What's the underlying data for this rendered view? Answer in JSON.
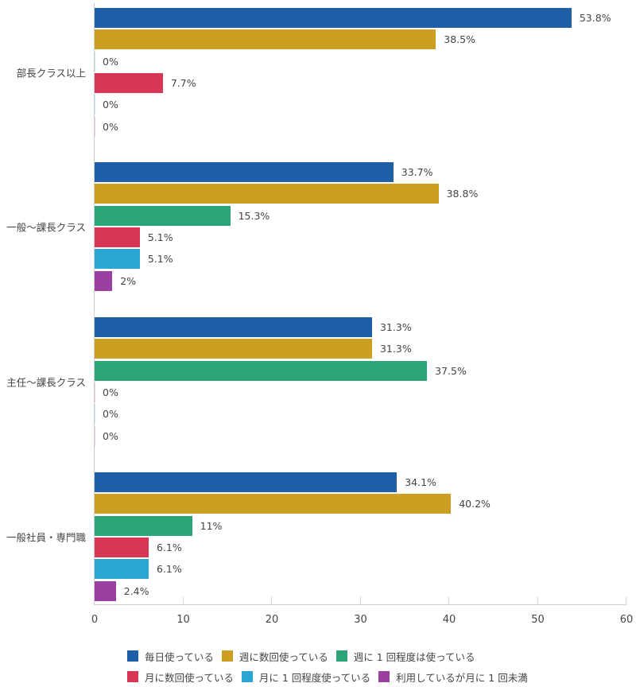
{
  "chart_data": {
    "type": "bar",
    "orientation": "horizontal",
    "title": "",
    "xlabel": "",
    "ylabel": "",
    "xlim": [
      0,
      60
    ],
    "x_ticks": [
      0,
      10,
      20,
      30,
      40,
      50,
      60
    ],
    "grid": false,
    "legend_position": "bottom",
    "value_suffix": "%",
    "categories": [
      "部長クラス以上",
      "一般～課長クラス",
      "主任～課長クラス",
      "一般社員・専門職"
    ],
    "series": [
      {
        "name": "毎日使っている",
        "color": "#1f5fa8",
        "values": [
          53.8,
          33.7,
          31.3,
          34.1
        ],
        "labels": [
          "53.8%",
          "33.7%",
          "31.3%",
          "34.1%"
        ]
      },
      {
        "name": "週に数回使っている",
        "color": "#cc9e22",
        "values": [
          38.5,
          38.8,
          31.3,
          40.2
        ],
        "labels": [
          "38.5%",
          "38.8%",
          "31.3%",
          "40.2%"
        ]
      },
      {
        "name": "週に 1 回程度は使っている",
        "color": "#29a577",
        "values": [
          0,
          15.3,
          37.5,
          11
        ],
        "labels": [
          "0%",
          "15.3%",
          "37.5%",
          "11%"
        ]
      },
      {
        "name": "月に数回使っている",
        "color": "#d73754",
        "values": [
          7.7,
          5.1,
          0,
          6.1
        ],
        "labels": [
          "7.7%",
          "5.1%",
          "0%",
          "6.1%"
        ]
      },
      {
        "name": "月に 1 回程度使っている",
        "color": "#2aa6d2",
        "values": [
          0,
          5.1,
          0,
          6.1
        ],
        "labels": [
          "0%",
          "5.1%",
          "0%",
          "6.1%"
        ]
      },
      {
        "name": "利用しているが月に 1 回未満",
        "color": "#9a40a0",
        "values": [
          0,
          2,
          0,
          2.4
        ],
        "labels": [
          "0%",
          "2%",
          "0%",
          "2.4%"
        ]
      }
    ]
  },
  "legend": {
    "rows": [
      [
        0,
        1,
        2
      ],
      [
        3,
        4,
        5
      ]
    ]
  }
}
